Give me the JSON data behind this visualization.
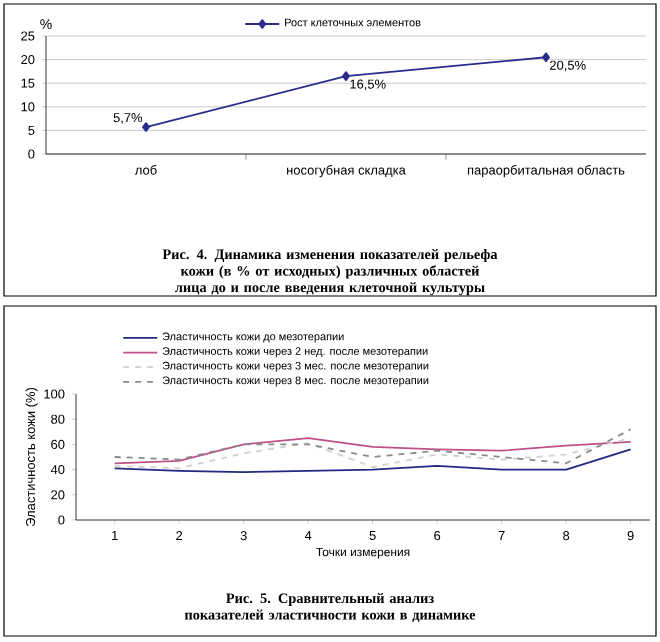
{
  "chart_data": [
    {
      "type": "line",
      "categories": [
        "лоб",
        "носогубная складка",
        "параорбитальная область"
      ],
      "series": [
        {
          "name": "Рост клеточных элементов",
          "color": "#2b2b8c",
          "values": [
            5.7,
            16.5,
            20.5
          ],
          "value_labels": [
            "5,7%",
            "16,5%",
            "20,5%"
          ]
        }
      ],
      "ylabel": "%",
      "ylim": [
        0,
        25
      ],
      "yticks": [
        0,
        5,
        10,
        15,
        20,
        25
      ],
      "grid": "y",
      "legend": "top",
      "marker": "diamond",
      "line_style": "solid",
      "annotations": [
        "Рис. 4. Динамика изменения показателей рельефа кожи (в % от исходных) различных областей лица до и после введения клеточной культуры"
      ]
    },
    {
      "type": "line",
      "categories": [
        "1",
        "2",
        "3",
        "4",
        "5",
        "6",
        "7",
        "8",
        "9"
      ],
      "series": [
        {
          "name": "Эластичность кожи до мезотерапии",
          "color": "#1f2a80",
          "values": [
            41,
            39,
            38,
            39,
            40,
            43,
            40,
            40,
            56
          ],
          "line_style": "solid"
        },
        {
          "name": "Эластичность кожи через 2 нед. после мезотерапии",
          "color": "#c0508c",
          "values": [
            45,
            47,
            60,
            65,
            58,
            56,
            55,
            59,
            62
          ],
          "line_style": "solid"
        },
        {
          "name": "Эластичность кожи через 3 мес. после мезотерапии",
          "color": "#d0d0d0",
          "values": [
            43,
            41,
            53,
            61,
            42,
            52,
            48,
            52,
            65
          ],
          "line_style": "dashed"
        },
        {
          "name": "Эластичность кожи через 8 мес. после мезотерапии",
          "color": "#8a8a8a",
          "values": [
            50,
            48,
            60,
            60,
            50,
            55,
            50,
            45,
            72
          ],
          "line_style": "dashed"
        }
      ],
      "xlabel": "Точки измерения",
      "ylabel": "Эластичность кожи (%)",
      "ylim": [
        0,
        100
      ],
      "yticks": [
        0,
        20,
        40,
        60,
        80,
        100
      ],
      "grid": false,
      "legend": "top",
      "marker": "none",
      "annotations": [
        "Рис. 5. Сравнительный анализ показателей эластичности кожи в динамике"
      ]
    }
  ]
}
